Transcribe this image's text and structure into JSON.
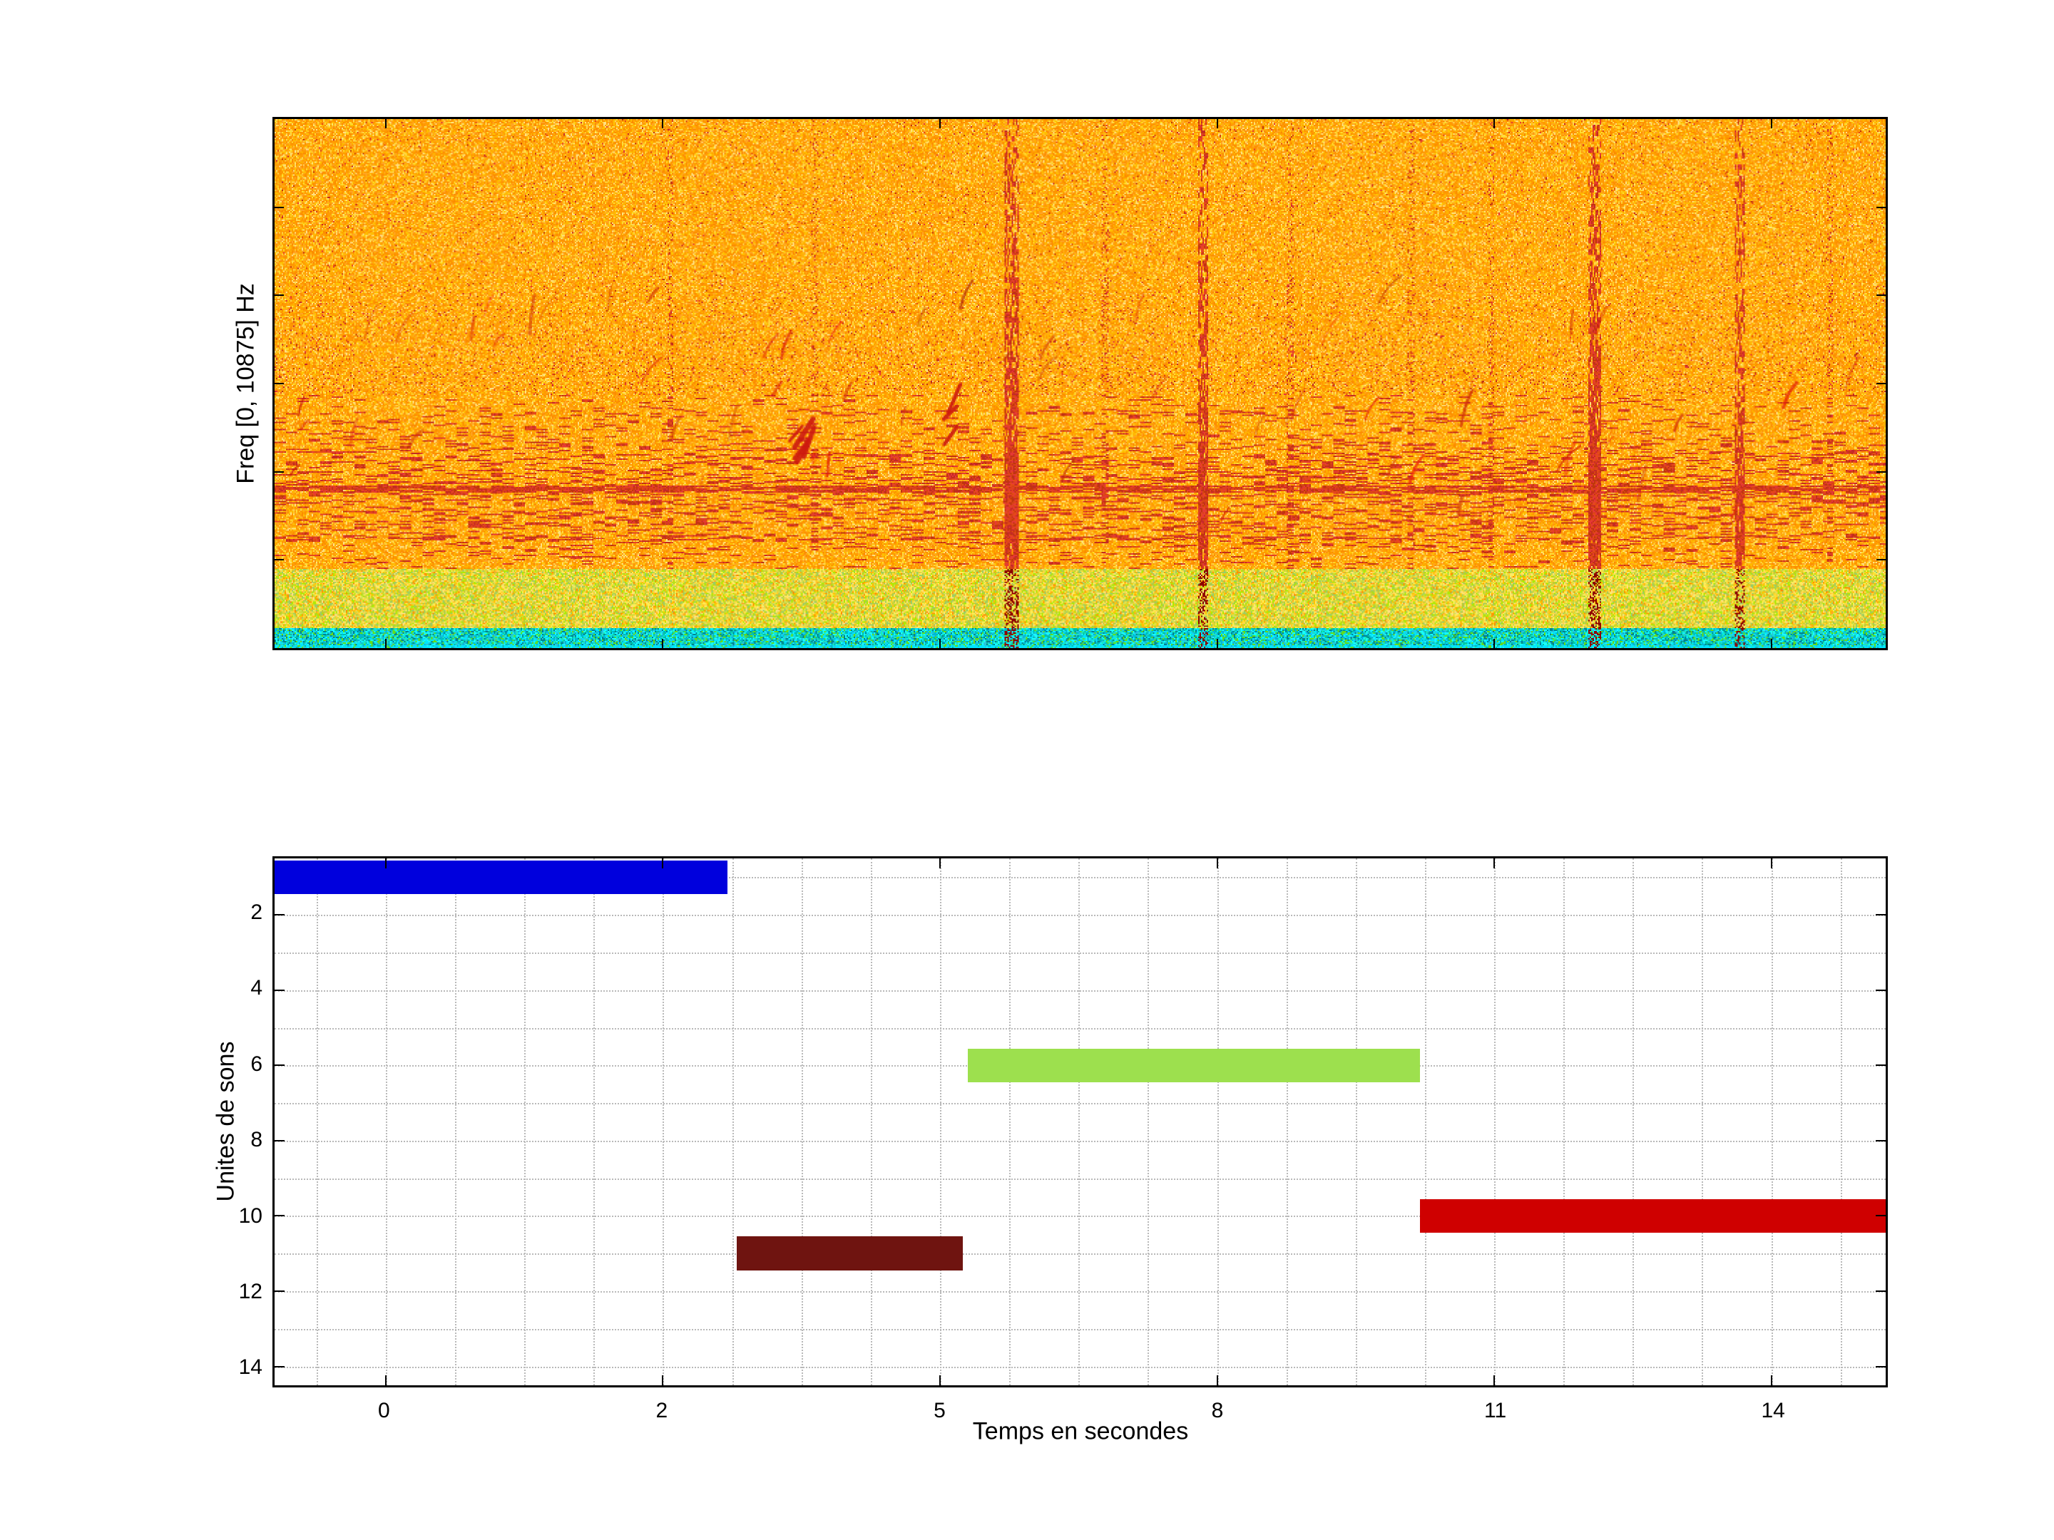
{
  "figure": {
    "background": "#ffffff"
  },
  "chart_data": [
    {
      "type": "heatmap",
      "title": "",
      "xlabel": "",
      "ylabel": "Freq [0, 10875] Hz",
      "description": "Spectrogram: orange/yellow noise field, denser red horizontal streaks in lower third, yellow-green speckle band near bottom, thin cyan strip at bottom edge, strong dark-red vertical streaks",
      "zones": {
        "main_end": 0.85,
        "band_end": 0.962
      },
      "palette": {
        "orange": [
          "#ff9d00",
          "#fb8c00",
          "#ffa524",
          "#ff9800",
          "#ffb300"
        ],
        "yellow": [
          "#ffd54f",
          "#ffca28",
          "#ffe082",
          "#ffc400",
          "#ffde33"
        ],
        "red": [
          "#e53935",
          "#d84315",
          "#c62828",
          "#e64a19",
          "#bf360c"
        ],
        "dark_red": "#8e0000",
        "band_yellow_green": [
          "#ffee58",
          "#d4e157",
          "#cddc39",
          "#c0ca33",
          "#aeea00",
          "#9ccc65"
        ],
        "band_bottom": [
          "#00e5ff",
          "#18ffff",
          "#1de9b6",
          "#26c6da",
          "#00bfa5",
          "#64dd17",
          "#00b8d4"
        ],
        "bottom_dark": "#00838f"
      },
      "vertical_streaks": [
        {
          "x": 0.457,
          "w": 0.0045,
          "s": 1.0
        },
        {
          "x": 0.576,
          "w": 0.0035,
          "s": 0.95
        },
        {
          "x": 0.819,
          "w": 0.004,
          "s": 1.0
        },
        {
          "x": 0.909,
          "w": 0.0032,
          "s": 0.8
        },
        {
          "x": 0.245,
          "w": 0.002,
          "s": 0.25
        },
        {
          "x": 0.335,
          "w": 0.002,
          "s": 0.22
        },
        {
          "x": 0.515,
          "w": 0.002,
          "s": 0.25
        },
        {
          "x": 0.63,
          "w": 0.0022,
          "s": 0.3
        },
        {
          "x": 0.705,
          "w": 0.002,
          "s": 0.28
        },
        {
          "x": 0.755,
          "w": 0.002,
          "s": 0.25
        },
        {
          "x": 0.965,
          "w": 0.002,
          "s": 0.3
        }
      ],
      "horizontal_lines": [
        {
          "y": 0.698,
          "s": 0.5
        },
        {
          "y": 0.79,
          "s": 0.22
        },
        {
          "y": 0.555,
          "s": 0.12
        }
      ]
    },
    {
      "type": "bar",
      "orientation": "horizontal-gantt",
      "title": "",
      "xlabel": "Temps en secondes",
      "ylabel": "Unites de sons",
      "xticks": [
        0,
        2,
        5,
        8,
        11,
        14
      ],
      "yticks": [
        2,
        4,
        6,
        8,
        10,
        12,
        14
      ],
      "ylim": [
        0.5,
        14.5
      ],
      "grid": "dotted",
      "bar_half_height_units": 0.45,
      "bars": [
        {
          "unit": 1,
          "start_s": -0.8,
          "end_s": 2.7,
          "color": "#0000dd"
        },
        {
          "unit": 11,
          "start_s": 2.8,
          "end_s": 5.25,
          "color": "#6f1410"
        },
        {
          "unit": 6,
          "start_s": 5.3,
          "end_s": 10.2,
          "color": "#9de04e"
        },
        {
          "unit": 10,
          "start_s": 10.2,
          "end_s": 15.3,
          "color": "#cf0000"
        }
      ]
    }
  ]
}
